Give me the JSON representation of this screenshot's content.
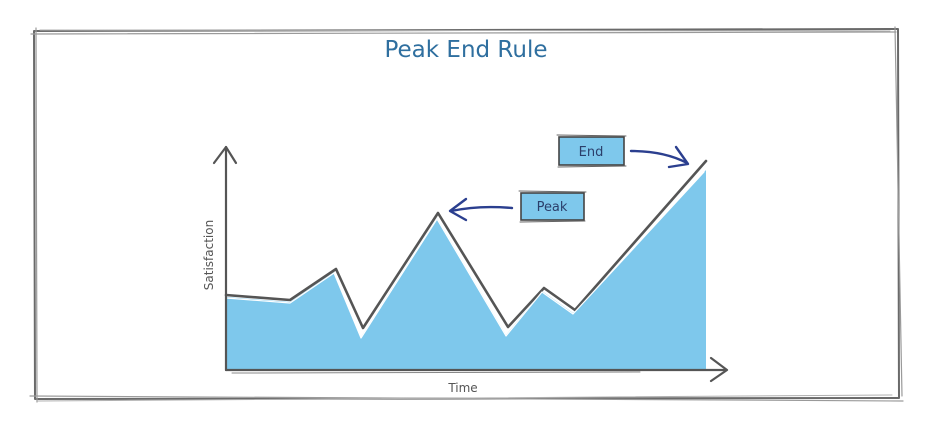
{
  "title": "Peak End Rule",
  "axes": {
    "x_label": "Time",
    "y_label": "Satisfaction"
  },
  "callouts": {
    "peak": "Peak",
    "end": "End"
  },
  "chart_data": {
    "type": "area",
    "title": "Peak End Rule",
    "xlabel": "Time",
    "ylabel": "Satisfaction",
    "grid": false,
    "annotations": [
      "Peak",
      "End"
    ]
  },
  "colors": {
    "fill": "#7ec8ec",
    "line": "#555555",
    "title": "#2f6f9f",
    "callout_border": "#444444",
    "arrow": "#2b3f8f"
  }
}
